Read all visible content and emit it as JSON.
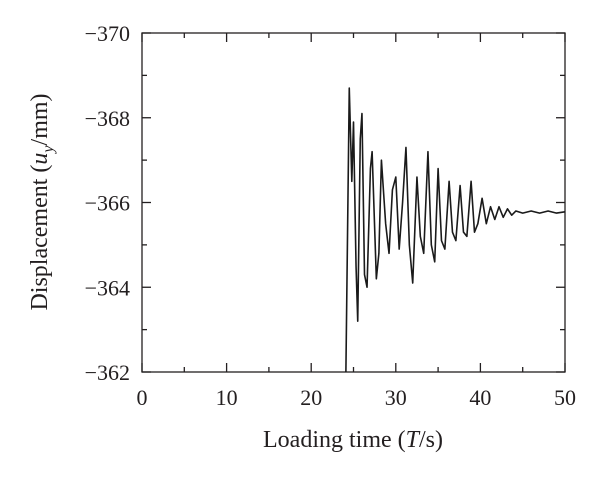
{
  "chart_data": {
    "type": "line",
    "ylabel": {
      "text": "Displacement (",
      "var": "u",
      "sub": "y",
      "unit": "/mm)"
    },
    "xlabel": {
      "text": "Loading time (",
      "var": "T",
      "unit": "/s)"
    },
    "x": [
      24.1,
      24.5,
      24.8,
      25.0,
      25.3,
      25.5,
      25.8,
      26.0,
      26.3,
      26.6,
      27.0,
      27.2,
      27.7,
      28.0,
      28.3,
      28.8,
      29.2,
      29.6,
      30.0,
      30.4,
      30.8,
      31.2,
      31.6,
      32.0,
      32.5,
      32.9,
      33.3,
      33.8,
      34.2,
      34.6,
      35.0,
      35.4,
      35.8,
      36.3,
      36.7,
      37.1,
      37.6,
      38.0,
      38.4,
      38.9,
      39.3,
      39.7,
      40.2,
      40.7,
      41.2,
      41.7,
      42.2,
      42.7,
      43.2,
      43.7,
      44.2,
      45,
      46,
      47,
      48,
      49,
      50
    ],
    "values": [
      -362.0,
      -368.7,
      -366.5,
      -367.9,
      -364.5,
      -363.2,
      -367.5,
      -368.1,
      -364.3,
      -364.0,
      -366.8,
      -367.2,
      -364.2,
      -364.8,
      -367.0,
      -365.5,
      -364.8,
      -366.3,
      -366.6,
      -364.9,
      -366.0,
      -367.3,
      -365.0,
      -364.1,
      -366.6,
      -365.2,
      -364.8,
      -367.2,
      -365.0,
      -364.6,
      -366.8,
      -365.1,
      -364.9,
      -366.5,
      -365.3,
      -365.1,
      -366.4,
      -365.3,
      -365.2,
      -366.5,
      -365.3,
      -365.5,
      -366.1,
      -365.5,
      -365.9,
      -365.6,
      -365.9,
      -365.65,
      -365.85,
      -365.7,
      -365.8,
      -365.75,
      -365.8,
      -365.75,
      -365.8,
      -365.75,
      -365.78
    ],
    "color": "#1a1a1a",
    "xlim": [
      0,
      50
    ],
    "xticks": [
      0,
      10,
      20,
      30,
      40,
      50
    ],
    "xminorticks": [
      5,
      15,
      25,
      35,
      45
    ],
    "ylim": [
      -362,
      -370
    ],
    "yticks": [
      {
        "value": -370,
        "label": "−370"
      },
      {
        "value": -368,
        "label": "−368"
      },
      {
        "value": -366,
        "label": "−366"
      },
      {
        "value": -364,
        "label": "−364"
      },
      {
        "value": -362,
        "label": "−362"
      }
    ],
    "yminorticks": [
      -369,
      -367,
      -365,
      -363
    ],
    "grid": false
  }
}
